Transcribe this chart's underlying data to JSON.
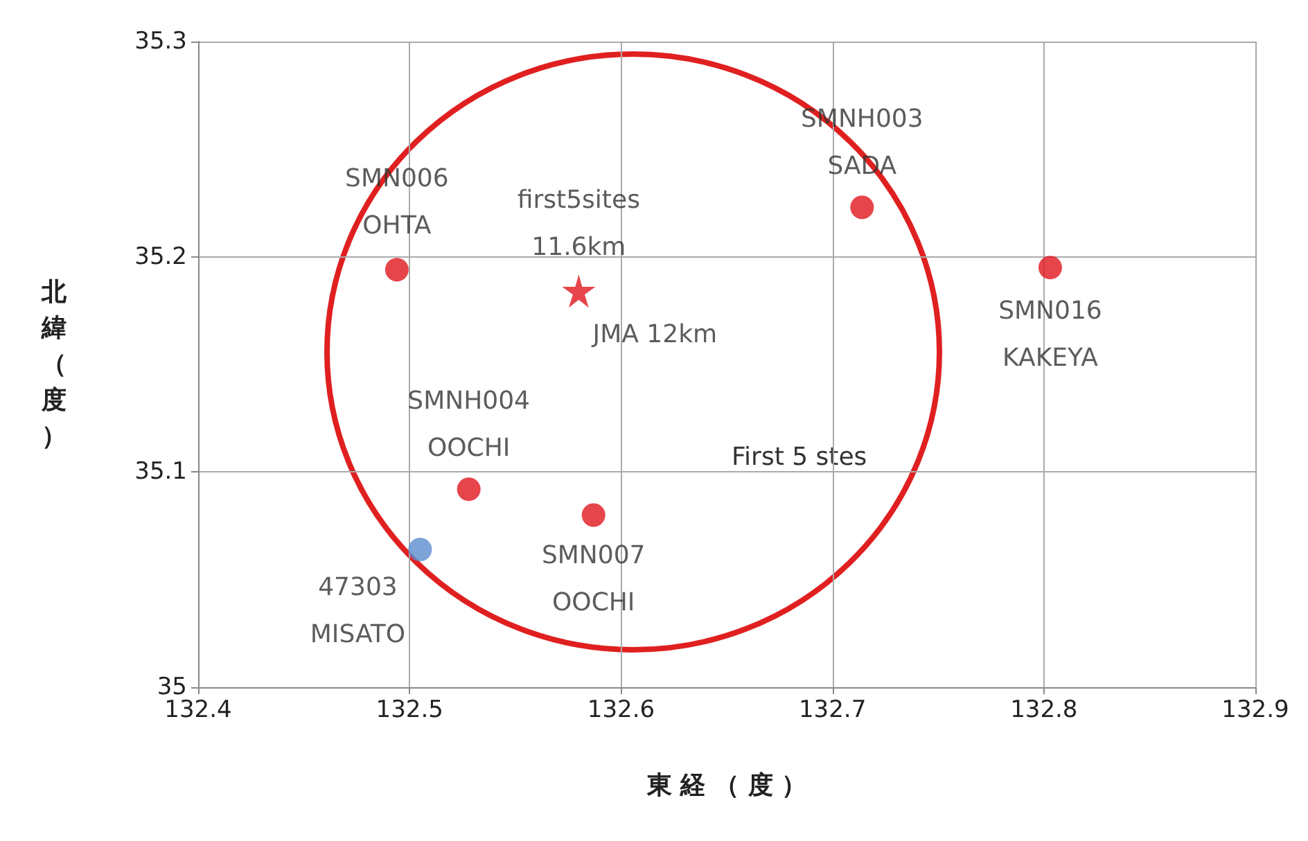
{
  "chart_data": {
    "type": "scatter",
    "xlabel": "東 経 （ 度 ）",
    "ylabel": "北緯（度）",
    "xlim": [
      132.4,
      132.9
    ],
    "xticks": [
      132.4,
      132.5,
      132.6,
      132.7,
      132.8,
      132.9
    ],
    "ylim": [
      35,
      35.3
    ],
    "yticks": [
      35,
      35.1,
      35.2,
      35.3
    ],
    "grid": true,
    "series": [
      {
        "marker": "circle",
        "color": "#e0161e",
        "x": [
          132.494,
          132.714,
          132.803,
          132.528,
          132.587
        ],
        "values": [
          35.194,
          35.223,
          35.195,
          35.092,
          35.08
        ]
      },
      {
        "marker": "circle",
        "color": "#5b8dd0",
        "x": [
          132.505
        ],
        "values": [
          35.064
        ]
      },
      {
        "marker": "star",
        "color": "#e0161e",
        "x": [
          132.58
        ],
        "values": [
          35.184
        ]
      }
    ],
    "annotations": [
      {
        "text": "SMN006\nOHTA",
        "x": 132.494,
        "y": 35.194
      },
      {
        "text": "SMNH003\nSADA",
        "x": 132.714,
        "y": 35.223
      },
      {
        "text": "SMN016\nKAKEYA",
        "x": 132.803,
        "y": 35.195
      },
      {
        "text": "SMNH004\nOOCHI",
        "x": 132.528,
        "y": 35.092
      },
      {
        "text": "SMN007\nOOCHI",
        "x": 132.587,
        "y": 35.08
      },
      {
        "text": "47303\nMISATO",
        "x": 132.505,
        "y": 35.064
      },
      {
        "text": "first5sites\n11.6km",
        "x": 132.58,
        "y": 35.184
      },
      {
        "text": "JMA 12km",
        "x": 132.58,
        "y": 35.184
      },
      "First 5 stes"
    ]
  }
}
